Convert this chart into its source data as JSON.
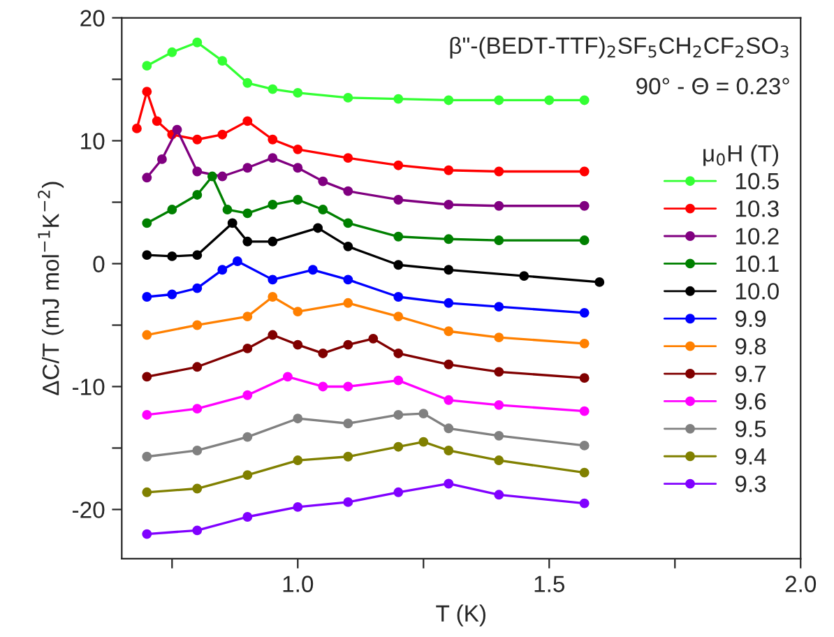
{
  "chart_data": {
    "type": "line",
    "xlabel": "T (K)",
    "ylabel": "ΔC/T (mJ mol$^{−1}$K$^{−2}$)",
    "legend_title": "μ$_{0}$H (T)",
    "annotations": [
      "β\"-(BEDT-TTF)$_{2}$SF$_{5}$CH$_{2}$CF$_{2}$SO$_{3}$",
      "90° - Θ = 0.23°"
    ],
    "xlim": [
      0.65,
      2.0
    ],
    "ylim": [
      -24,
      20
    ],
    "xticks": [
      {
        "value": 0.75,
        "label": null
      },
      {
        "value": 1.0,
        "label": "1.0"
      },
      {
        "value": 1.25,
        "label": null
      },
      {
        "value": 1.5,
        "label": "1.5"
      },
      {
        "value": 1.75,
        "label": null
      },
      {
        "value": 2.0,
        "label": "2.0"
      }
    ],
    "yticks": [
      -20,
      {
        "value": -15,
        "label": null
      },
      -10,
      {
        "value": -5,
        "label": null
      },
      0,
      {
        "value": 5,
        "label": null
      },
      10,
      {
        "value": 15,
        "label": null
      },
      20
    ],
    "marker": "circle",
    "line_style": "solid",
    "legend": "right",
    "grid": false,
    "series": [
      {
        "name": "10.5",
        "color": "#33ff33",
        "x": [
          0.7,
          0.75,
          0.8,
          0.85,
          0.9,
          0.95,
          1.0,
          1.1,
          1.2,
          1.3,
          1.4,
          1.5,
          1.57
        ],
        "values": [
          16.1,
          17.2,
          18.0,
          16.5,
          14.7,
          14.2,
          13.9,
          13.5,
          13.4,
          13.3,
          13.3,
          13.3,
          13.3
        ]
      },
      {
        "name": "10.3",
        "color": "#ff0000",
        "x": [
          0.68,
          0.7,
          0.72,
          0.75,
          0.8,
          0.85,
          0.9,
          0.95,
          1.0,
          1.1,
          1.2,
          1.3,
          1.4,
          1.57
        ],
        "values": [
          11.0,
          14.0,
          11.6,
          10.5,
          10.1,
          10.5,
          11.6,
          10.1,
          9.3,
          8.6,
          8.0,
          7.6,
          7.5,
          7.5
        ]
      },
      {
        "name": "10.2",
        "color": "#800080",
        "x": [
          0.7,
          0.73,
          0.76,
          0.8,
          0.85,
          0.9,
          0.95,
          1.0,
          1.05,
          1.1,
          1.2,
          1.3,
          1.4,
          1.57
        ],
        "values": [
          7.0,
          8.5,
          10.9,
          7.5,
          7.1,
          7.8,
          8.6,
          7.8,
          6.7,
          5.9,
          5.2,
          4.8,
          4.7,
          4.7
        ]
      },
      {
        "name": "10.1",
        "color": "#008000",
        "x": [
          0.7,
          0.75,
          0.8,
          0.83,
          0.86,
          0.9,
          0.95,
          1.0,
          1.05,
          1.1,
          1.2,
          1.3,
          1.4,
          1.57
        ],
        "values": [
          3.3,
          4.4,
          5.6,
          7.1,
          4.4,
          4.1,
          4.8,
          5.2,
          4.4,
          3.3,
          2.2,
          2.0,
          1.9,
          1.9
        ]
      },
      {
        "name": "10.0",
        "color": "#000000",
        "x": [
          0.7,
          0.75,
          0.8,
          0.87,
          0.9,
          0.95,
          1.04,
          1.1,
          1.2,
          1.3,
          1.45,
          1.6
        ],
        "values": [
          0.7,
          0.6,
          0.7,
          3.3,
          1.8,
          1.8,
          2.9,
          1.4,
          -0.1,
          -0.5,
          -1.0,
          -1.5
        ]
      },
      {
        "name": "9.9",
        "color": "#0000ff",
        "x": [
          0.7,
          0.75,
          0.8,
          0.85,
          0.88,
          0.95,
          1.03,
          1.1,
          1.2,
          1.3,
          1.4,
          1.57
        ],
        "values": [
          -2.7,
          -2.5,
          -2.0,
          -0.5,
          0.2,
          -1.3,
          -0.5,
          -1.3,
          -2.7,
          -3.2,
          -3.5,
          -4.0
        ]
      },
      {
        "name": "9.8",
        "color": "#ff8000",
        "x": [
          0.7,
          0.8,
          0.9,
          0.95,
          1.0,
          1.1,
          1.2,
          1.3,
          1.4,
          1.57
        ],
        "values": [
          -5.8,
          -5.0,
          -4.3,
          -2.7,
          -3.9,
          -3.2,
          -4.3,
          -5.5,
          -6.0,
          -6.5
        ]
      },
      {
        "name": "9.7",
        "color": "#800000",
        "x": [
          0.7,
          0.8,
          0.9,
          0.95,
          1.0,
          1.05,
          1.1,
          1.15,
          1.2,
          1.3,
          1.4,
          1.57
        ],
        "values": [
          -9.2,
          -8.4,
          -6.9,
          -5.8,
          -6.6,
          -7.3,
          -6.6,
          -6.1,
          -7.3,
          -8.2,
          -8.8,
          -9.3
        ]
      },
      {
        "name": "9.6",
        "color": "#ff00ff",
        "x": [
          0.7,
          0.8,
          0.9,
          0.98,
          1.05,
          1.1,
          1.2,
          1.3,
          1.4,
          1.57
        ],
        "values": [
          -12.3,
          -11.8,
          -10.7,
          -9.2,
          -10.0,
          -10.0,
          -9.5,
          -11.1,
          -11.5,
          -12.0
        ]
      },
      {
        "name": "9.5",
        "color": "#808080",
        "x": [
          0.7,
          0.8,
          0.9,
          1.0,
          1.1,
          1.2,
          1.25,
          1.3,
          1.4,
          1.57
        ],
        "values": [
          -15.7,
          -15.2,
          -14.1,
          -12.6,
          -13.0,
          -12.3,
          -12.2,
          -13.4,
          -14.0,
          -14.8
        ]
      },
      {
        "name": "9.4",
        "color": "#808000",
        "x": [
          0.7,
          0.8,
          0.9,
          1.0,
          1.1,
          1.2,
          1.25,
          1.3,
          1.4,
          1.57
        ],
        "values": [
          -18.6,
          -18.3,
          -17.2,
          -16.0,
          -15.7,
          -14.9,
          -14.5,
          -15.2,
          -16.0,
          -17.0
        ]
      },
      {
        "name": "9.3",
        "color": "#8000ff",
        "x": [
          0.7,
          0.8,
          0.9,
          1.0,
          1.1,
          1.2,
          1.3,
          1.4,
          1.57
        ],
        "values": [
          -22.0,
          -21.7,
          -20.6,
          -19.8,
          -19.4,
          -18.6,
          -17.9,
          -18.8,
          -19.5
        ]
      }
    ]
  }
}
